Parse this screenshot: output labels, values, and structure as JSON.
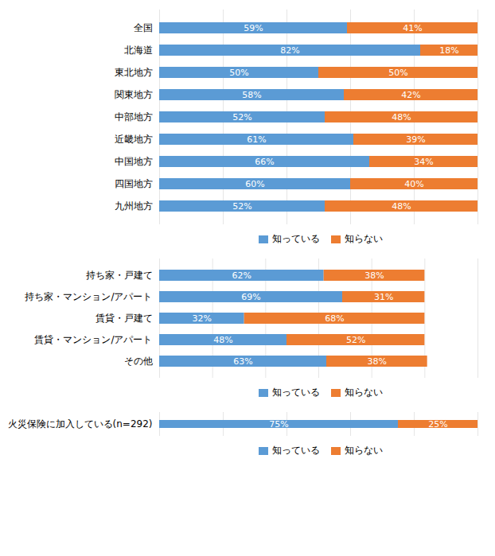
{
  "chart_data": [
    {
      "type": "bar",
      "orientation": "horizontal",
      "stacked": true,
      "data_labels": true,
      "grid": true,
      "tick_labels": "y",
      "legend": "bottom",
      "categories": [
        "全国",
        "北海道",
        "東北地方",
        "関東地方",
        "中部地方",
        "近畿地方",
        "中国地方",
        "四国地方",
        "九州地方"
      ],
      "series": [
        {
          "name": "知っている",
          "color": "#5b9bd5",
          "values": [
            59,
            82,
            50,
            58,
            52,
            61,
            66,
            60,
            52
          ],
          "value_labels": [
            "59%",
            "82%",
            "50%",
            "58%",
            "52%",
            "61%",
            "66%",
            "60%",
            "52%"
          ]
        },
        {
          "name": "知らない",
          "color": "#ed7d31",
          "values": [
            41,
            18,
            50,
            42,
            48,
            39,
            34,
            40,
            48
          ],
          "value_labels": [
            "41%",
            "18%",
            "50%",
            "42%",
            "48%",
            "39%",
            "34%",
            "40%",
            "48%"
          ]
        }
      ],
      "xlim": [
        0,
        100
      ],
      "xticks": [
        0,
        20,
        40,
        60,
        80,
        100
      ]
    },
    {
      "type": "bar",
      "orientation": "horizontal",
      "stacked": true,
      "data_labels": true,
      "grid": true,
      "tick_labels": "y",
      "legend": "bottom",
      "categories": [
        "持ち家・戸建て",
        "持ち家・マンション/アパート",
        "賃貸・戸建て",
        "賃貸・マンション/アパート",
        "その他"
      ],
      "series": [
        {
          "name": "知っている",
          "color": "#5b9bd5",
          "values": [
            62,
            69,
            32,
            48,
            63
          ],
          "value_labels": [
            "62%",
            "69%",
            "32%",
            "48%",
            "63%"
          ]
        },
        {
          "name": "知らない",
          "color": "#ed7d31",
          "values": [
            38,
            31,
            68,
            52,
            38
          ],
          "value_labels": [
            "38%",
            "31%",
            "68%",
            "52%",
            "38%"
          ]
        }
      ],
      "xlim": [
        0,
        120
      ],
      "xticks": [
        0,
        20,
        40,
        60,
        80,
        100,
        120
      ]
    },
    {
      "type": "bar",
      "orientation": "horizontal",
      "stacked": true,
      "data_labels": true,
      "grid": true,
      "tick_labels": "y",
      "legend": "bottom",
      "categories": [
        "火災保険に加入している(n=292)"
      ],
      "series": [
        {
          "name": "知っている",
          "color": "#5b9bd5",
          "values": [
            75
          ],
          "value_labels": [
            "75%"
          ]
        },
        {
          "name": "知らない",
          "color": "#ed7d31",
          "values": [
            25
          ],
          "value_labels": [
            "25%"
          ]
        }
      ],
      "xlim": [
        0,
        100
      ],
      "xticks": [
        0,
        20,
        40,
        60,
        80,
        100
      ]
    }
  ]
}
